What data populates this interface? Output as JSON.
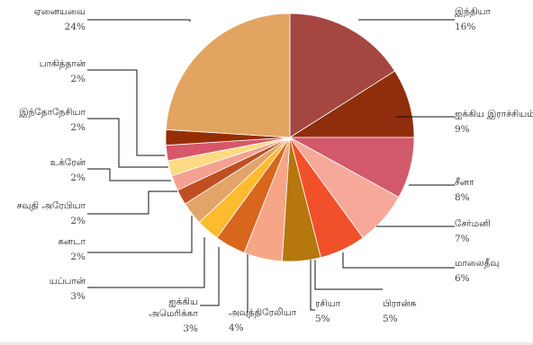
{
  "chart_data": {
    "type": "pie",
    "slices": [
      {
        "label": "இந்தியா",
        "value": 16,
        "value_label": "16%",
        "color": "#A64640"
      },
      {
        "label": "ஐக்கிய இராச்சியம்",
        "value": 9,
        "value_label": "9%",
        "color": "#8F2E0C"
      },
      {
        "label": "சீனா",
        "value": 8,
        "value_label": "8%",
        "color": "#D1596A"
      },
      {
        "label": "சேர்மனி",
        "value": 7,
        "value_label": "7%",
        "color": "#F7A999"
      },
      {
        "label": "மாலைதீவு",
        "value": 6,
        "value_label": "6%",
        "color": "#F0512B"
      },
      {
        "label": "ரசியா",
        "value": 5,
        "value_label": "5%",
        "color": "#B5770E"
      },
      {
        "label": "பிரான்சு",
        "value": 5,
        "value_label": "5%",
        "color": "#F7A587"
      },
      {
        "label": "அவுத்திரேலியா",
        "value": 4,
        "value_label": "4%",
        "color": "#D8661D"
      },
      {
        "label": "ஐக்கிய அமெரிக்கா",
        "value": 3,
        "value_label": "3%",
        "color": "#FDBB2F"
      },
      {
        "label": "யப்பான்",
        "value": 3,
        "value_label": "3%",
        "color": "#E3A46A"
      },
      {
        "label": "கனடா",
        "value": 2,
        "value_label": "2%",
        "color": "#BF4F22"
      },
      {
        "label": "சவுதி அரேபியா",
        "value": 2,
        "value_label": "2%",
        "color": "#F5A192"
      },
      {
        "label": "உக்ரேன்",
        "value": 2,
        "value_label": "2%",
        "color": "#FDDB84"
      },
      {
        "label": "இந்தோநேசியா",
        "value": 2,
        "value_label": "2%",
        "color": "#D8566A"
      },
      {
        "label": "பாகித்தான்",
        "value": 2,
        "value_label": "2%",
        "color": "#952E03"
      },
      {
        "label": "ஏனையவை",
        "value": 24,
        "value_label": "24%",
        "color": "#E2A461"
      }
    ],
    "start": "top",
    "direction": "clockwise",
    "slice_border_color": "#ffffff"
  }
}
